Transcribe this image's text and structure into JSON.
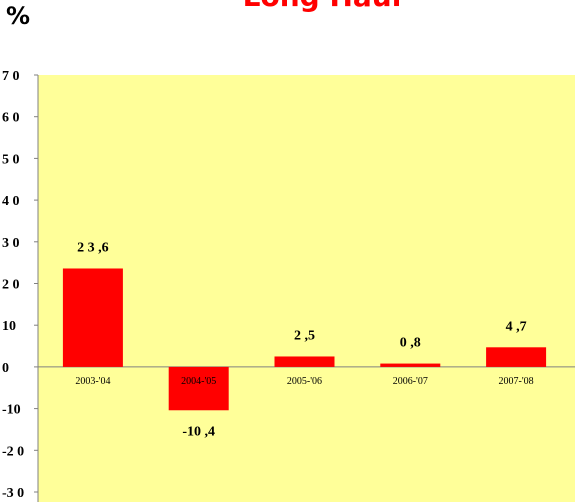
{
  "page": {
    "unit_label": "%"
  },
  "colors": {
    "plot_background": "#ffff99",
    "bar": "#ff0000",
    "title": "#ff0000",
    "axis": "#808080"
  },
  "chart_data": {
    "type": "bar",
    "title": "Long Haul",
    "categories": [
      "2003-'04",
      "2004-'05",
      "2005-'06",
      "2006-'07",
      "2007-'08"
    ],
    "values": [
      23.6,
      -10.4,
      2.5,
      0.8,
      4.7
    ],
    "data_labels": [
      "2 3 ,6",
      "-10 ,4",
      "2 ,5",
      "0 ,8",
      "4 ,7"
    ],
    "ylim": [
      -30,
      70
    ],
    "yticks": [
      70,
      60,
      50,
      40,
      30,
      20,
      10,
      0,
      -10,
      -20,
      -30
    ],
    "ytick_labels": [
      "7 0",
      "6 0",
      "5 0",
      "4 0",
      "3 0",
      "2 0",
      "10",
      "0",
      "-10",
      "-2 0",
      "-3 0"
    ],
    "grid": false,
    "legend": "none"
  }
}
